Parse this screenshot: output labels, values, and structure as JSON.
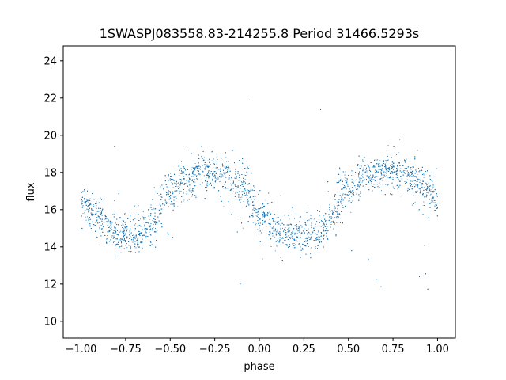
{
  "chart_data": {
    "type": "scatter",
    "title": "1SWASPJ083558.83-214255.8 Period 31466.5293s",
    "xlabel": "phase",
    "ylabel": "flux",
    "xlim": [
      -1.1,
      1.1
    ],
    "ylim": [
      9.1,
      24.8
    ],
    "xticks": [
      -1.0,
      -0.75,
      -0.5,
      -0.25,
      0.0,
      0.25,
      0.5,
      0.75,
      1.0
    ],
    "xtick_labels": [
      "−1.00",
      "−0.75",
      "−0.50",
      "−0.25",
      "0.00",
      "0.25",
      "0.50",
      "0.75",
      "1.00"
    ],
    "yticks": [
      10,
      12,
      14,
      16,
      18,
      20,
      22,
      24
    ],
    "ytick_labels": [
      "10",
      "12",
      "14",
      "16",
      "18",
      "20",
      "22",
      "24"
    ],
    "grid": false,
    "point_color": "#1f77b4",
    "model": {
      "period_in_phase": 1.0,
      "x_range": [
        -1.0,
        1.0
      ],
      "min_flux_phase": [
        -0.7,
        0.3
      ],
      "max_flux_phase": [
        -0.25,
        0.75
      ],
      "min_flux": 14.5,
      "max_flux": 18.1,
      "phase_points": [
        -1.0,
        -0.9,
        -0.8,
        -0.7,
        -0.6,
        -0.5,
        -0.4,
        -0.3,
        -0.2,
        -0.1,
        0.0,
        0.1,
        0.2,
        0.3,
        0.4,
        0.5,
        0.6,
        0.7,
        0.8,
        0.9,
        1.0
      ],
      "flux_points": [
        16.5,
        15.6,
        14.8,
        14.5,
        15.4,
        17.1,
        17.8,
        18.1,
        18.0,
        17.2,
        15.8,
        14.9,
        14.6,
        14.5,
        15.5,
        17.3,
        17.9,
        18.1,
        18.0,
        17.4,
        16.5
      ]
    }
  }
}
